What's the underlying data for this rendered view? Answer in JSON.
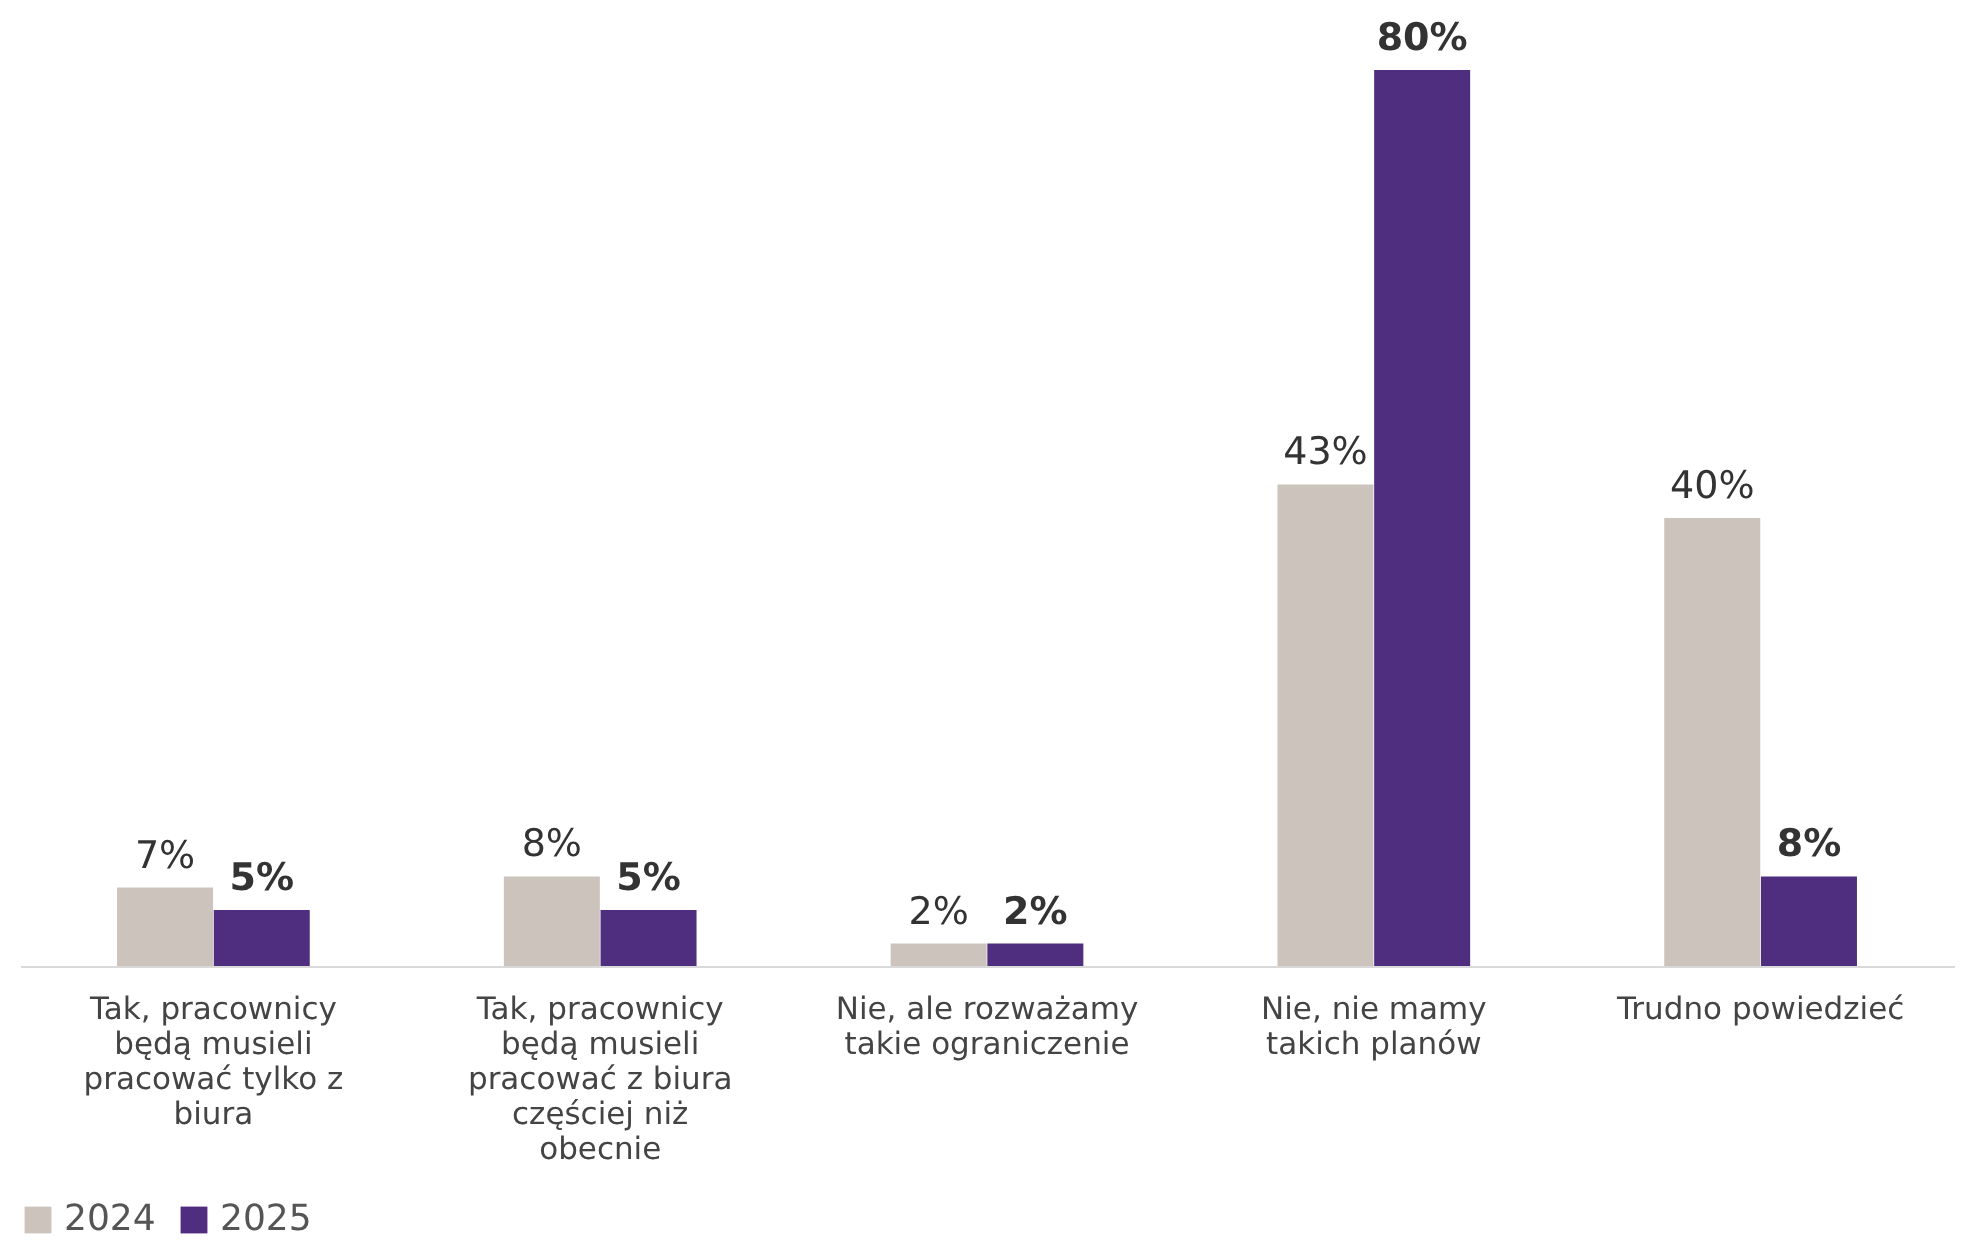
{
  "chart_data": {
    "type": "bar",
    "categories": [
      "Tak, pracownicy będą musieli pracować tylko z biura",
      "Tak, pracownicy będą musieli pracować z biura częściej niż obecnie",
      "Nie, ale rozważamy takie ograniczenie",
      "Nie, nie mamy takich planów",
      "Trudno powiedzieć"
    ],
    "series": [
      {
        "name": "2024",
        "color": "#cbc3bc",
        "values": [
          7,
          8,
          2,
          43,
          40
        ],
        "value_labels": [
          "7%",
          "8%",
          "2%",
          "43%",
          "40%"
        ]
      },
      {
        "name": "2025",
        "color": "#4f2d7f",
        "values": [
          5,
          5,
          2,
          80,
          8
        ],
        "value_labels": [
          "5%",
          "5%",
          "2%",
          "80%",
          "8%"
        ]
      }
    ],
    "legend": "bottom"
  }
}
